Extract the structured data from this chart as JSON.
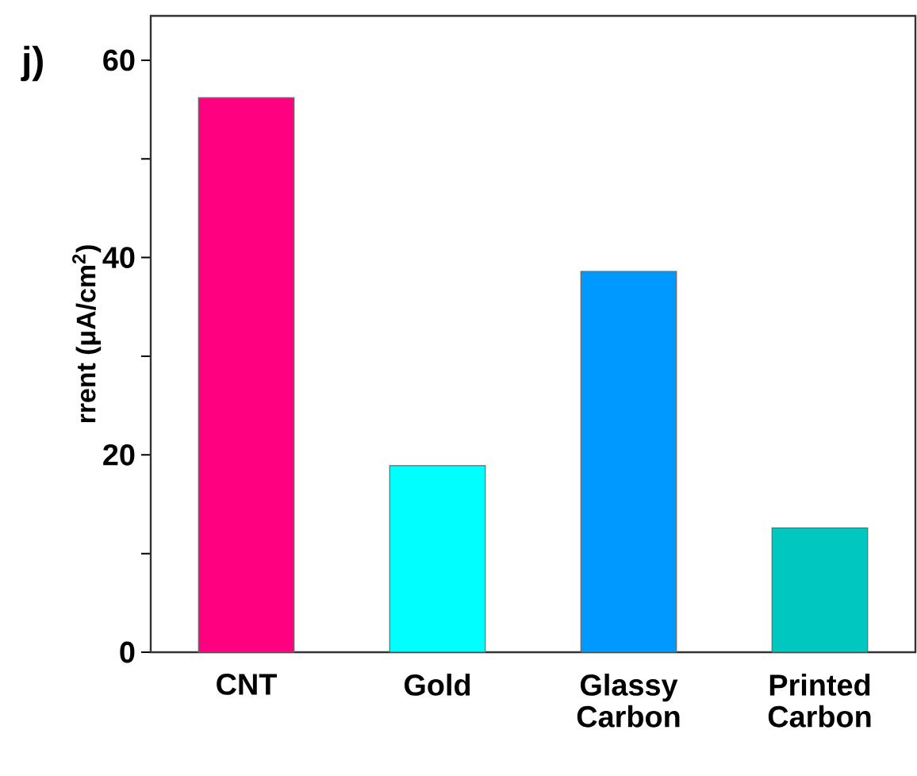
{
  "chart_data": {
    "type": "bar",
    "ylabel": "rrent (μA/cm$^{2}$)",
    "categories": [
      "CNT",
      "Gold",
      "Glassy Carbon",
      "Printed Carbon"
    ],
    "values": [
      56.2,
      18.9,
      38.6,
      12.6
    ],
    "colors": [
      "#ff0080",
      "#00ffff",
      "#0099ff",
      "#00c8c0"
    ],
    "ylim": [
      0,
      64.5
    ],
    "yticks": [
      0,
      {
        "value": 10,
        "label": null
      },
      20,
      {
        "value": 30,
        "label": null
      },
      40,
      {
        "value": 50,
        "label": null
      },
      60
    ],
    "annotations": [
      "j)"
    ]
  }
}
